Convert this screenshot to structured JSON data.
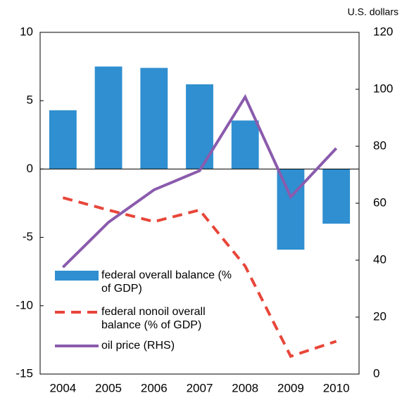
{
  "chart_data": {
    "type": "bar_line",
    "y2_axis_label": "U.S. dollars",
    "categories": [
      "2004",
      "2005",
      "2006",
      "2007",
      "2008",
      "2009",
      "2010"
    ],
    "series": [
      {
        "name": "federal overall balance (% of GDP)",
        "type": "bar",
        "color": "#2f8fd0",
        "values": [
          4.3,
          7.5,
          7.4,
          6.2,
          3.55,
          -5.9,
          -4.0
        ]
      },
      {
        "name": "federal nonoil overall balance (% of GDP)",
        "type": "line",
        "dashed": true,
        "color": "#e8463a",
        "values": [
          -2.1,
          -3.0,
          -3.85,
          -3.0,
          -7.1,
          -13.7,
          -12.6
        ]
      },
      {
        "name": "oil price (RHS)",
        "type": "line",
        "axis": "y2",
        "color": "#8a5bad",
        "values": [
          37.5,
          53.3,
          64.7,
          71.4,
          97.3,
          62.2,
          79.3
        ]
      }
    ],
    "ylim": [
      -15,
      10
    ],
    "yticks": [
      -15,
      -10,
      -5,
      0,
      5,
      10
    ],
    "y2lim": [
      0,
      120
    ],
    "y2ticks": [
      0,
      20,
      40,
      60,
      80,
      100,
      120
    ]
  }
}
